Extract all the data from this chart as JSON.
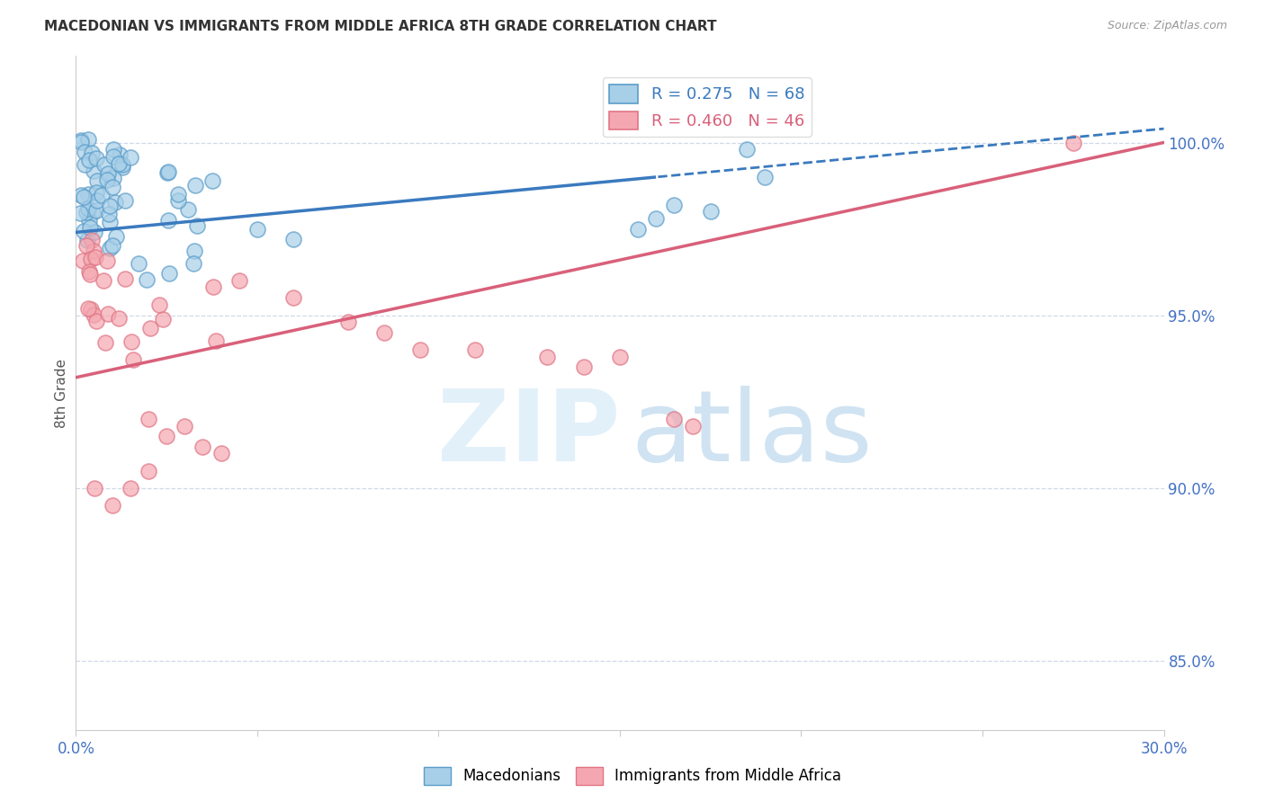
{
  "title": "MACEDONIAN VS IMMIGRANTS FROM MIDDLE AFRICA 8TH GRADE CORRELATION CHART",
  "source": "Source: ZipAtlas.com",
  "ylabel": "8th Grade",
  "xlim": [
    0.0,
    0.3
  ],
  "ylim": [
    0.83,
    1.025
  ],
  "xtick_values": [
    0.0,
    0.05,
    0.1,
    0.15,
    0.2,
    0.25,
    0.3
  ],
  "xtick_labels_visible": {
    "0.0": "0.0%",
    "0.30": "30.0%"
  },
  "ytick_values_right": [
    0.85,
    0.9,
    0.95,
    1.0
  ],
  "ytick_labels_right": [
    "85.0%",
    "90.0%",
    "95.0%",
    "100.0%"
  ],
  "blue_R": 0.275,
  "blue_N": 68,
  "pink_R": 0.46,
  "pink_N": 46,
  "blue_color": "#a8cfe8",
  "pink_color": "#f4a7b0",
  "blue_edge_color": "#5b9dc9",
  "pink_edge_color": "#e07585",
  "blue_line_color": "#3a7abf",
  "pink_line_color": "#d9607a",
  "legend_label_blue": "Macedonians",
  "legend_label_pink": "Immigrants from Middle Africa",
  "grid_color": "#d0d8e8",
  "tick_color": "#aaaaaa",
  "title_color": "#333333",
  "source_color": "#999999",
  "ylabel_color": "#555555",
  "right_tick_color": "#4472c4",
  "bottom_tick_label_color": "#4472c4"
}
